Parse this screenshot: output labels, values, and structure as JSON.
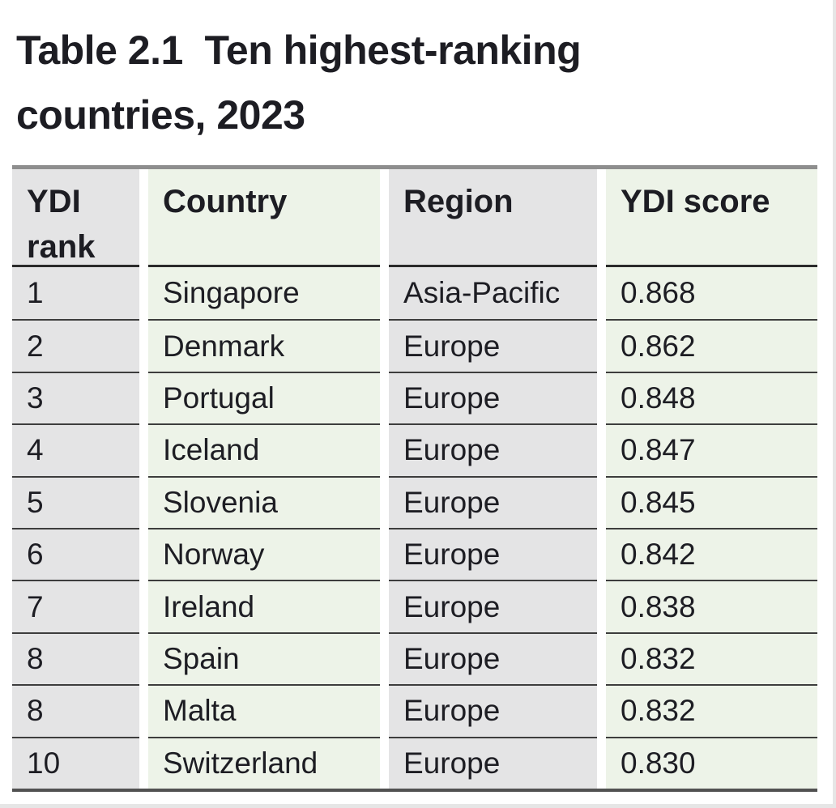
{
  "page": {
    "title_lines": [
      "Table 2.1  Ten highest-ranking",
      "countries, 2023"
    ],
    "title_full": "Table 2.1  Ten highest-ranking countries, 2023"
  },
  "table": {
    "columns": [
      "YDI rank",
      "Country",
      "Region",
      "YDI score"
    ],
    "rows": [
      {
        "rank": "1",
        "country": "Singapore",
        "region": "Asia-Pacific",
        "score": "0.868"
      },
      {
        "rank": "2",
        "country": "Denmark",
        "region": "Europe",
        "score": "0.862"
      },
      {
        "rank": "3",
        "country": "Portugal",
        "region": "Europe",
        "score": "0.848"
      },
      {
        "rank": "4",
        "country": "Iceland",
        "region": "Europe",
        "score": "0.847"
      },
      {
        "rank": "5",
        "country": "Slovenia",
        "region": "Europe",
        "score": "0.845"
      },
      {
        "rank": "6",
        "country": "Norway",
        "region": "Europe",
        "score": "0.842"
      },
      {
        "rank": "7",
        "country": "Ireland",
        "region": "Europe",
        "score": "0.838"
      },
      {
        "rank": "8",
        "country": "Spain",
        "region": "Europe",
        "score": "0.832"
      },
      {
        "rank": "8",
        "country": "Malta",
        "region": "Europe",
        "score": "0.832"
      },
      {
        "rank": "10",
        "country": "Switzerland",
        "region": "Europe",
        "score": "0.830"
      }
    ]
  },
  "colors": {
    "column_gray": "#e4e4e5",
    "column_green": "#edf3e8",
    "top_border": "#8e8e8e",
    "header_rule": "#2b2b2b",
    "row_rule": "#3d3d3d",
    "bottom_border": "#515151",
    "text": "#1d1d23",
    "page_edge": "#e6e6e6"
  }
}
